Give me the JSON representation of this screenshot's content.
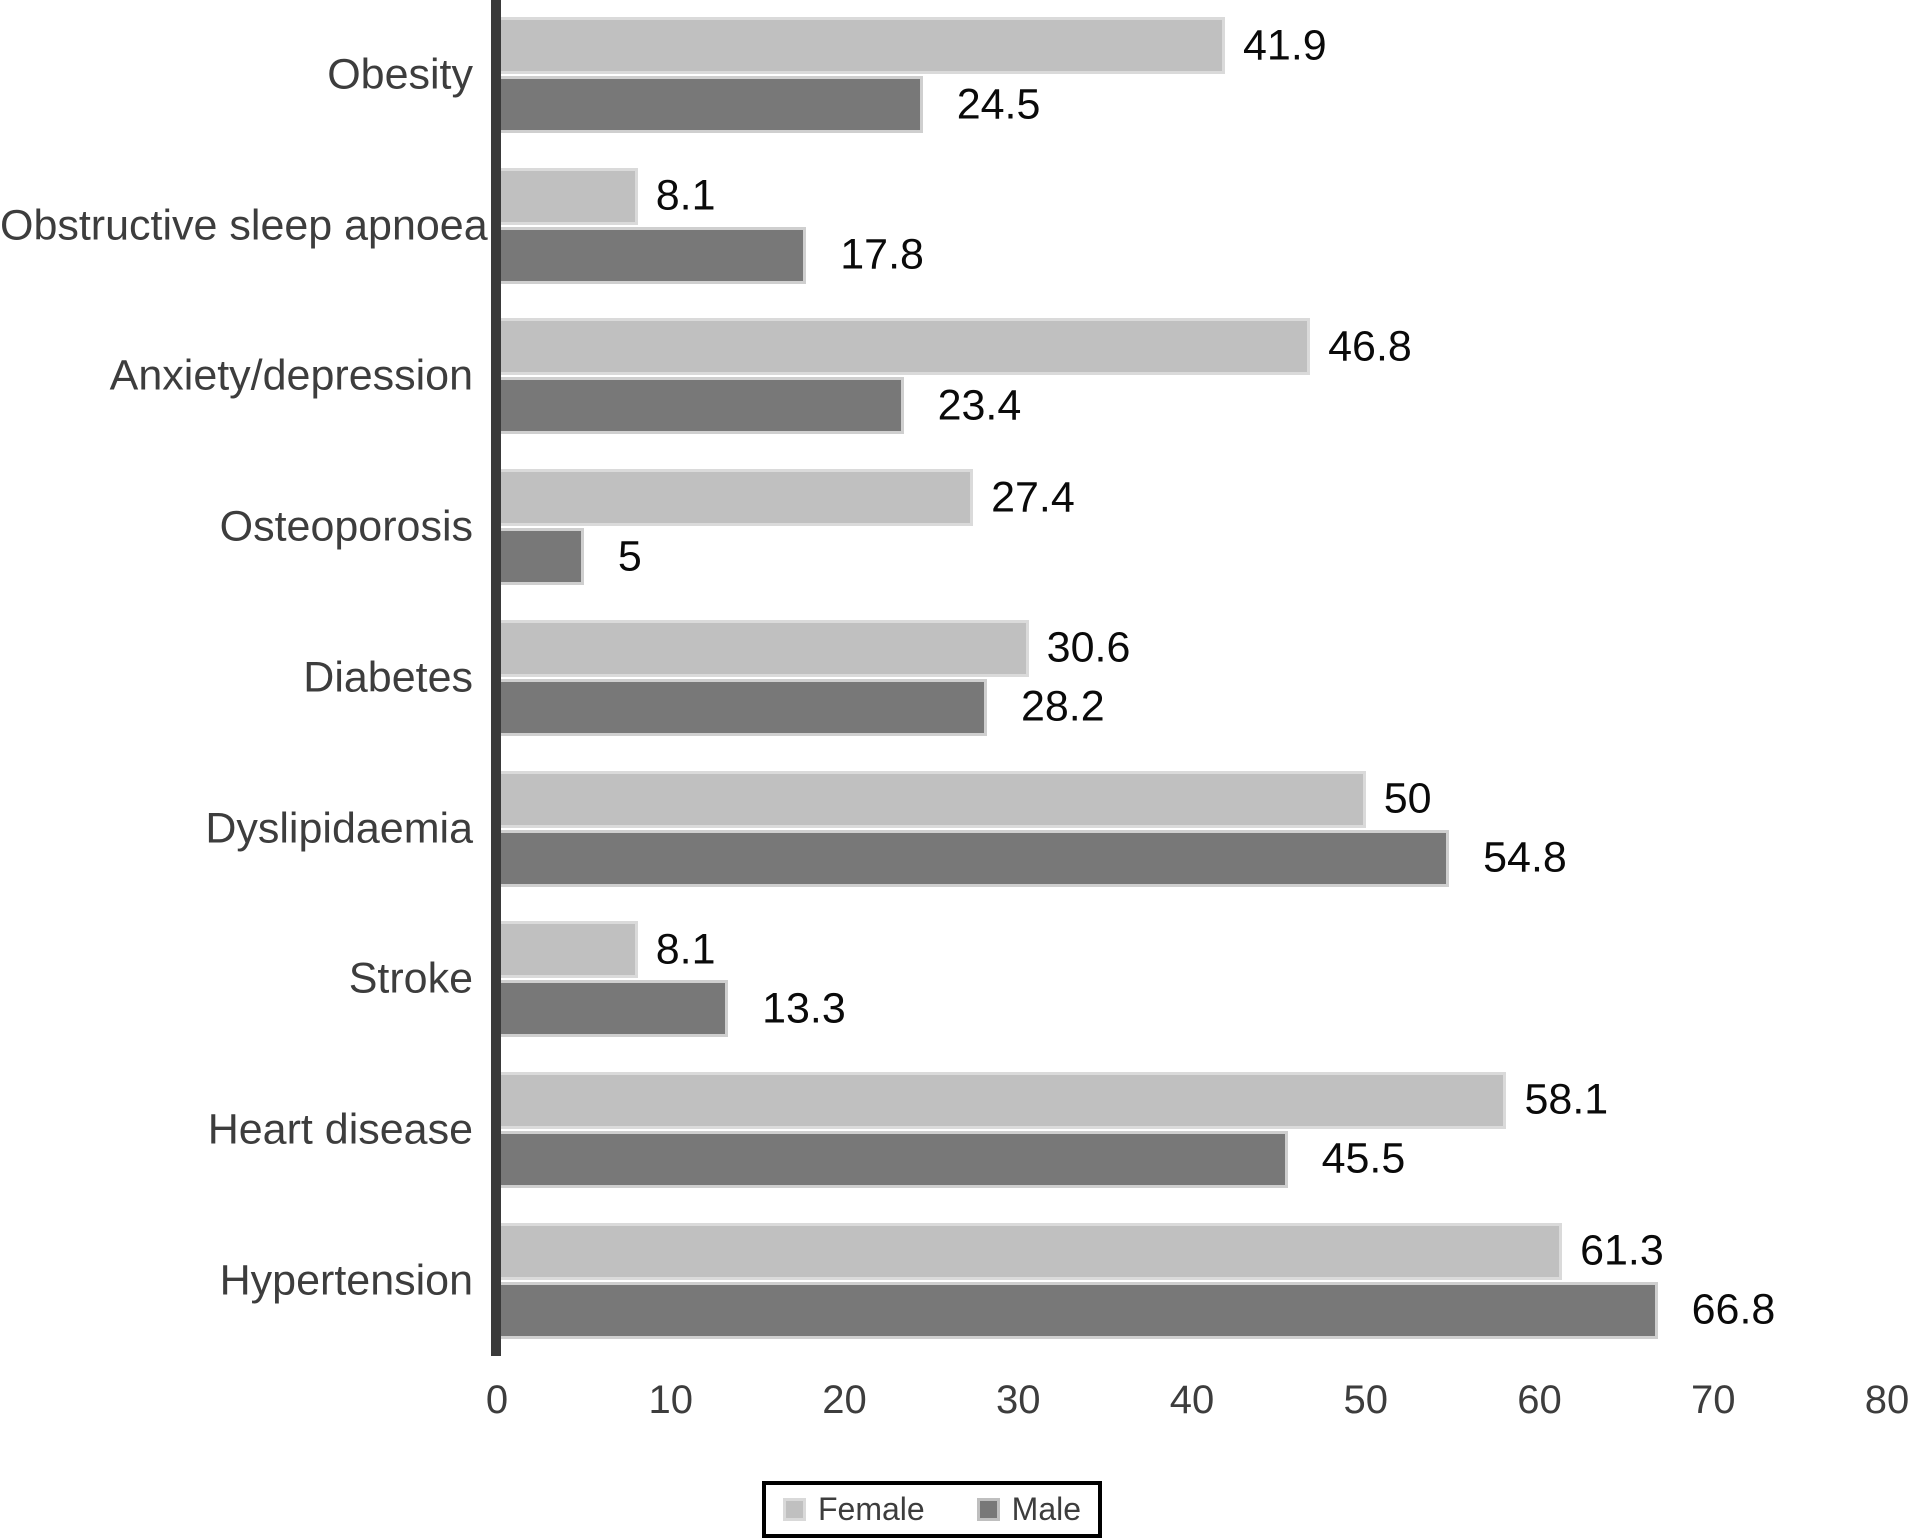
{
  "chart_data": {
    "type": "bar",
    "orientation": "horizontal",
    "title": "",
    "xlabel": "",
    "ylabel": "",
    "xlim": [
      0,
      80
    ],
    "x_ticks": [
      "0",
      "10",
      "20",
      "30",
      "40",
      "50",
      "60",
      "70",
      "80"
    ],
    "grid": false,
    "categories": [
      "Obesity",
      "Obstructive sleep apnoea",
      "Anxiety/depression",
      "Osteoporosis",
      "Diabetes",
      "Dyslipidaemia",
      "Stroke",
      "Heart disease",
      "Hypertension"
    ],
    "series": [
      {
        "name": "Female",
        "color": "#c0c0c0",
        "values": [
          41.9,
          8.1,
          46.8,
          27.4,
          30.6,
          50,
          8.1,
          58.1,
          61.3
        ],
        "labels": [
          "41.9",
          "8.1",
          "46.8",
          "27.4",
          "30.6",
          "50",
          "8.1",
          "58.1",
          "61.3"
        ]
      },
      {
        "name": "Male",
        "color": "#787878",
        "values": [
          24.5,
          17.8,
          23.4,
          5,
          28.2,
          54.8,
          13.3,
          45.5,
          66.8
        ],
        "labels": [
          "24.5",
          "17.8",
          "23.4",
          "5",
          "28.2",
          "54.8",
          "13.3",
          "45.5",
          "66.8"
        ]
      }
    ],
    "legend": {
      "position": "bottom",
      "entries": [
        "Female",
        "Male"
      ]
    }
  }
}
